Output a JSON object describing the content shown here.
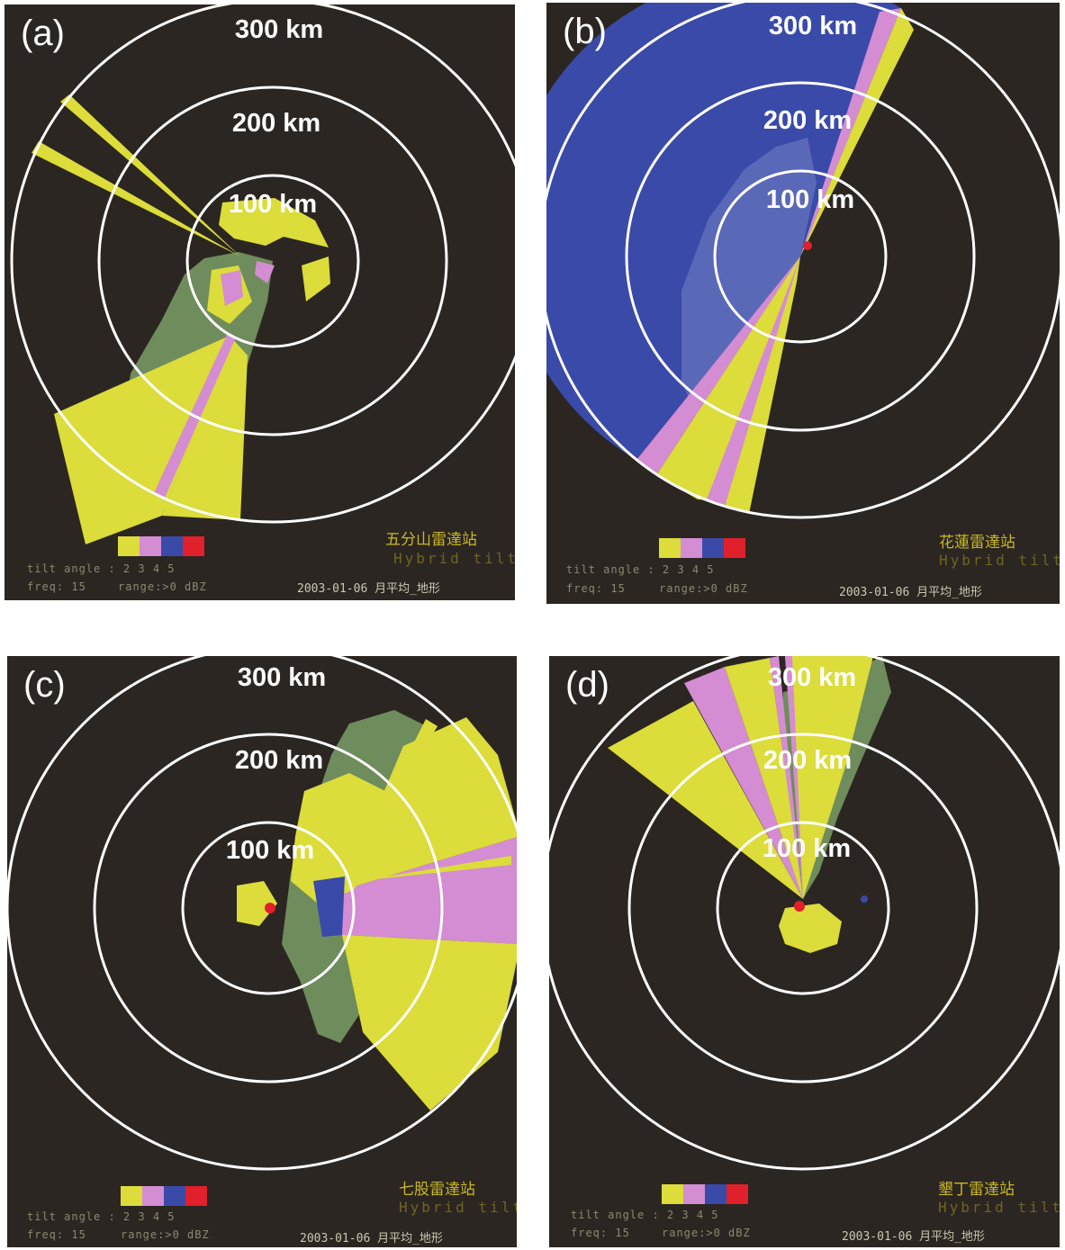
{
  "colors": {
    "background": "#2b2622",
    "ring": "#ffffff",
    "tilt2": "#dcdc3a",
    "tilt3": "#d48cd2",
    "tilt4": "#3a4aa8",
    "tilt5": "#e0202a",
    "land": "#6f8c5c"
  },
  "range_rings": [
    "100 km",
    "200 km",
    "300 km"
  ],
  "legend": {
    "tilt_angle": "tilt angle : 2  3  4  5",
    "freq": "freq: 15",
    "range": "range:>0  dBZ",
    "mode": "Hybrid tilts",
    "date": "2003-01-06 月平均_地形"
  },
  "panels": [
    {
      "id": "a",
      "label": "(a)",
      "station": "五分山雷達站"
    },
    {
      "id": "b",
      "label": "(b)",
      "station": "花蓮雷達站"
    },
    {
      "id": "c",
      "label": "(c)",
      "station": "七股雷達站"
    },
    {
      "id": "d",
      "label": "(d)",
      "station": "墾丁雷達站"
    }
  ]
}
